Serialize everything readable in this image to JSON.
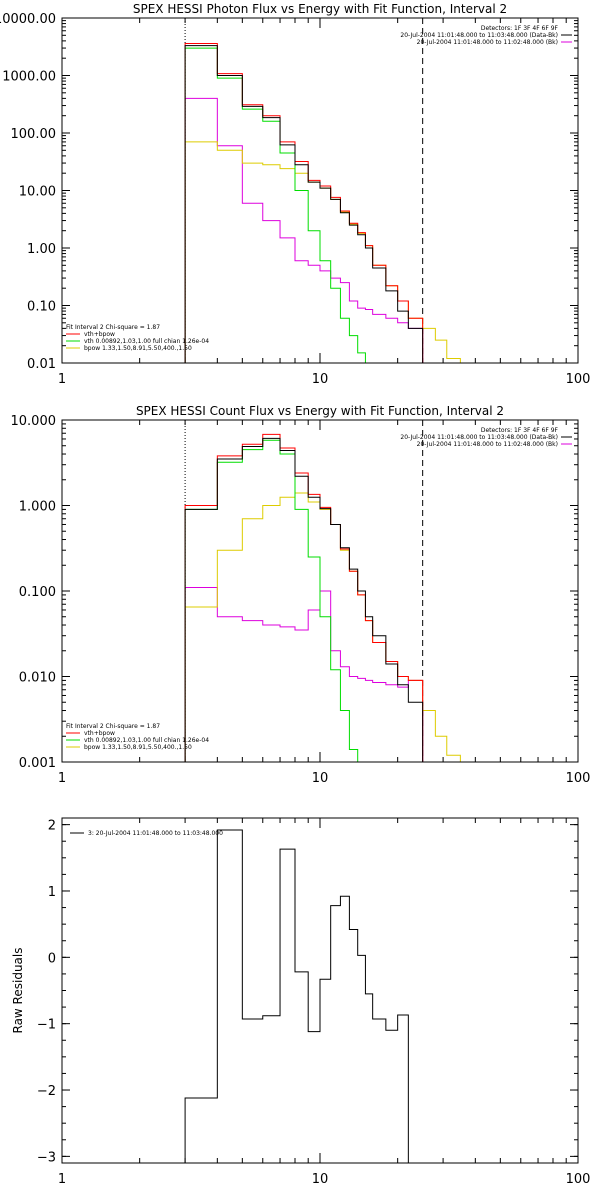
{
  "colors": {
    "total": "#000000",
    "fit": "#ff0000",
    "vth": "#00dd00",
    "bpow": "#ddcc00",
    "bk": "#dd00dd",
    "frame": "#000000"
  },
  "chart_data": [
    {
      "type": "line",
      "title": "SPEX HESSI Photon Flux vs Energy with Fit Function, Interval 2",
      "xlabel": "",
      "ylabel": "",
      "xscale": "log",
      "yscale": "log",
      "xlim": [
        1,
        100
      ],
      "ylim": [
        0.01,
        10000
      ],
      "xticks": [
        {
          "v": 1,
          "label": "1"
        },
        {
          "v": 10,
          "label": "10"
        },
        {
          "v": 100,
          "label": "100"
        }
      ],
      "yticks": [
        {
          "v": 0.01,
          "label": "0.01"
        },
        {
          "v": 0.1,
          "label": "0.10"
        },
        {
          "v": 1,
          "label": "1.00"
        },
        {
          "v": 10,
          "label": "10.00"
        },
        {
          "v": 100,
          "label": "100.00"
        },
        {
          "v": 1000,
          "label": "1000.00"
        },
        {
          "v": 10000,
          "label": "10000.00"
        }
      ],
      "vlines": [
        {
          "x": 3,
          "style": "dotted"
        },
        {
          "x": 25,
          "style": "dashed"
        }
      ],
      "info": [
        "Detectors: 1F 3F 4F 6F 9F",
        "20-Jul-2004 11:01:48.000 to 11:03:48.000 (Data-Bk)",
        "20-Jul-2004 11:01:48.000 to 11:02:48.000 (Bk)"
      ],
      "legend_title": "Fit Interval 2   Chi-square = 1.87",
      "legend": [
        {
          "label": "vth+bpow",
          "color": "#ff0000"
        },
        {
          "label": "vth 0.00892,1.03,1.00  full chian 1.26e-04",
          "color": "#00dd00"
        },
        {
          "label": "bpow 1.33,1.50,8.91,5.50,400.,1.50",
          "color": "#ddcc00"
        }
      ],
      "edges": [
        3,
        4,
        5,
        6,
        7,
        8,
        9,
        10,
        11,
        12,
        13,
        14,
        15,
        16,
        18,
        20,
        22,
        25,
        28,
        31,
        35
      ],
      "series": [
        {
          "key": "bk",
          "values": [
            400,
            60,
            6,
            3,
            1.5,
            0.6,
            0.5,
            0.4,
            0.3,
            0.25,
            0.12,
            0.09,
            0.085,
            0.07,
            0.06,
            0.05,
            0.04,
            null,
            null,
            null
          ]
        },
        {
          "key": "bpow",
          "values": [
            70,
            50,
            30,
            28,
            24,
            20,
            14,
            11,
            7,
            4.2,
            2.6,
            1.8,
            1.1,
            0.5,
            0.22,
            0.12,
            0.06,
            0.04,
            0.025,
            0.012
          ]
        },
        {
          "key": "vth",
          "values": [
            3000,
            900,
            260,
            160,
            45,
            10,
            2,
            0.6,
            0.2,
            0.06,
            0.03,
            0.015,
            null,
            null,
            null,
            null,
            null,
            null,
            null,
            null
          ]
        },
        {
          "key": "fit",
          "values": [
            3600,
            1080,
            310,
            200,
            70,
            32,
            15,
            12,
            7.6,
            4.4,
            2.7,
            1.85,
            1.1,
            0.5,
            0.22,
            0.12,
            0.06,
            null,
            null,
            null
          ]
        },
        {
          "key": "total",
          "values": [
            3300,
            1000,
            290,
            185,
            62,
            28,
            14,
            11,
            7,
            4.1,
            2.5,
            1.7,
            1.0,
            0.45,
            0.18,
            0.08,
            0.04,
            null,
            null,
            null
          ]
        }
      ]
    },
    {
      "type": "line",
      "title": "SPEX HESSI Count Flux vs Energy with Fit Function, Interval 2",
      "xlabel": "",
      "ylabel": "",
      "xscale": "log",
      "yscale": "log",
      "xlim": [
        1,
        100
      ],
      "ylim": [
        0.001,
        10
      ],
      "xticks": [
        {
          "v": 1,
          "label": "1"
        },
        {
          "v": 10,
          "label": "10"
        },
        {
          "v": 100,
          "label": "100"
        }
      ],
      "yticks": [
        {
          "v": 0.001,
          "label": "0.001"
        },
        {
          "v": 0.01,
          "label": "0.010"
        },
        {
          "v": 0.1,
          "label": "0.100"
        },
        {
          "v": 1,
          "label": "1.000"
        },
        {
          "v": 10,
          "label": "10.000"
        }
      ],
      "vlines": [
        {
          "x": 3,
          "style": "dotted"
        },
        {
          "x": 25,
          "style": "dashed"
        }
      ],
      "info": [
        "Detectors: 1F 3F 4F 6F 9F",
        "20-Jul-2004 11:01:48.000 to 11:03:48.000 (Data-Bk)",
        "20-Jul-2004 11:01:48.000 to 11:02:48.000 (Bk)"
      ],
      "legend_title": "Fit Interval 2   Chi-square = 1.87",
      "legend": [
        {
          "label": "vth+bpow",
          "color": "#ff0000"
        },
        {
          "label": "vth 0.00892,1.03,1.00  full chian 1.26e-04",
          "color": "#00dd00"
        },
        {
          "label": "bpow 1.33,1.50,8.91,5.50,400.,1.50",
          "color": "#ddcc00"
        }
      ],
      "edges": [
        3,
        4,
        5,
        6,
        7,
        8,
        9,
        10,
        11,
        12,
        13,
        14,
        15,
        16,
        18,
        20,
        22,
        25,
        28,
        31,
        35,
        38
      ],
      "series": [
        {
          "key": "bk",
          "values": [
            0.11,
            0.05,
            0.045,
            0.04,
            0.038,
            0.035,
            0.06,
            0.1,
            0.02,
            0.013,
            0.01,
            0.0095,
            0.009,
            0.0085,
            0.008,
            0.0075,
            0.009,
            null,
            null,
            null,
            null
          ]
        },
        {
          "key": "bpow",
          "values": [
            0.065,
            0.3,
            0.7,
            1.0,
            1.25,
            1.4,
            1.1,
            0.9,
            0.6,
            0.3,
            0.17,
            0.09,
            0.045,
            0.025,
            0.015,
            0.01,
            0.009,
            0.004,
            0.002,
            0.0012,
            0.001
          ]
        },
        {
          "key": "vth",
          "values": [
            0.9,
            3.2,
            4.5,
            5.8,
            4.0,
            0.9,
            0.25,
            0.05,
            0.012,
            0.004,
            0.0014,
            null,
            null,
            null,
            null,
            null,
            null,
            null,
            null,
            null,
            null
          ]
        },
        {
          "key": "fit",
          "values": [
            1.0,
            3.8,
            5.2,
            6.8,
            4.7,
            2.4,
            1.35,
            0.95,
            0.6,
            0.31,
            0.17,
            0.09,
            0.045,
            0.025,
            0.015,
            0.01,
            0.009,
            null,
            null,
            null,
            null
          ]
        },
        {
          "key": "total",
          "values": [
            0.9,
            3.5,
            4.9,
            6.1,
            4.4,
            2.2,
            1.25,
            0.92,
            0.6,
            0.32,
            0.18,
            0.1,
            0.05,
            0.03,
            0.014,
            0.008,
            0.005,
            null,
            null,
            null,
            null
          ]
        }
      ]
    },
    {
      "type": "line",
      "title": "",
      "xlabel": "",
      "ylabel": "Raw Residuals",
      "xscale": "log",
      "yscale": "linear",
      "xlim": [
        1,
        100
      ],
      "ylim": [
        -3.1,
        2.1
      ],
      "xticks": [
        {
          "v": 1,
          "label": "1"
        },
        {
          "v": 10,
          "label": "10"
        },
        {
          "v": 100,
          "label": "100"
        }
      ],
      "yticks": [
        {
          "v": -3,
          "label": "−3"
        },
        {
          "v": -2,
          "label": "−2"
        },
        {
          "v": -1,
          "label": "−1"
        },
        {
          "v": 0,
          "label": "0"
        },
        {
          "v": 1,
          "label": "1"
        },
        {
          "v": 2,
          "label": "2"
        }
      ],
      "vlines": [],
      "info": [],
      "legend_title": "",
      "legend": [
        {
          "label": "3: 20-Jul-2004 11:01:48.000 to 11:03:48.000",
          "color": "#000000"
        }
      ],
      "edges": [
        3,
        4,
        5,
        6,
        7,
        8,
        9,
        10,
        11,
        12,
        13,
        14,
        15,
        16,
        18,
        20,
        22,
        25
      ],
      "series": [
        {
          "key": "total",
          "values": [
            -2.12,
            1.92,
            -0.93,
            -0.88,
            1.63,
            -0.22,
            -1.12,
            -0.33,
            0.78,
            0.92,
            0.42,
            0.03,
            -0.55,
            -0.93,
            -1.1,
            -0.87,
            null
          ]
        }
      ]
    }
  ]
}
